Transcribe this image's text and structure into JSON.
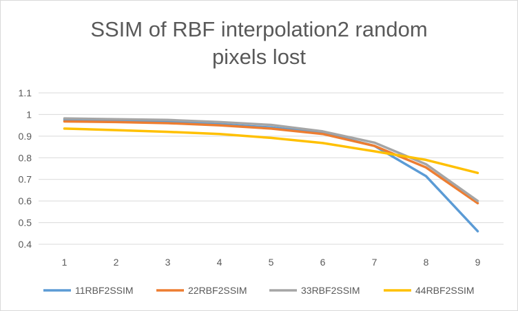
{
  "chart_data": {
    "type": "line",
    "title_lines": [
      "SSIM of RBF interpolation2 random",
      "pixels lost"
    ],
    "x": [
      "1",
      "2",
      "3",
      "4",
      "5",
      "6",
      "7",
      "8",
      "9"
    ],
    "ylim": [
      0.4,
      1.1
    ],
    "yticks": [
      "0.4",
      "0.5",
      "0.6",
      "0.7",
      "0.8",
      "0.9",
      "1",
      "1.1"
    ],
    "grid": true,
    "legend_position": "bottom",
    "series": [
      {
        "name": "11RBF2SSIM",
        "color": "#5b9bd5",
        "values": [
          0.975,
          0.97,
          0.965,
          0.955,
          0.94,
          0.915,
          0.855,
          0.715,
          0.46
        ]
      },
      {
        "name": "22RBF2SSIM",
        "color": "#ed7d31",
        "values": [
          0.968,
          0.965,
          0.96,
          0.95,
          0.935,
          0.91,
          0.855,
          0.755,
          0.59
        ]
      },
      {
        "name": "33RBF2SSIM",
        "color": "#a5a5a5",
        "values": [
          0.982,
          0.978,
          0.975,
          0.965,
          0.952,
          0.922,
          0.87,
          0.77,
          0.6
        ]
      },
      {
        "name": "44RBF2SSIM",
        "color": "#ffc000",
        "values": [
          0.935,
          0.928,
          0.92,
          0.91,
          0.892,
          0.868,
          0.83,
          0.79,
          0.73
        ]
      }
    ]
  }
}
